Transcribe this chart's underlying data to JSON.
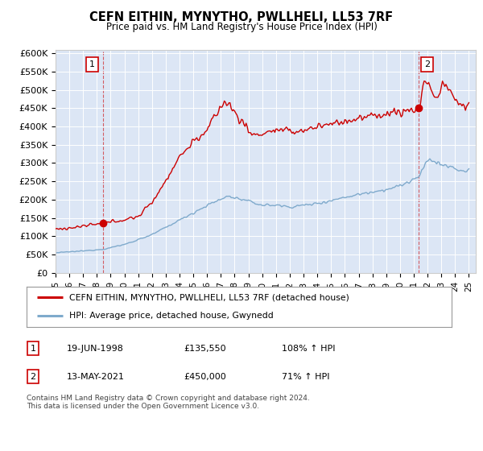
{
  "title": "CEFN EITHIN, MYNYTHO, PWLLHELI, LL53 7RF",
  "subtitle": "Price paid vs. HM Land Registry's House Price Index (HPI)",
  "ylabel_ticks": [
    "£0",
    "£50K",
    "£100K",
    "£150K",
    "£200K",
    "£250K",
    "£300K",
    "£350K",
    "£400K",
    "£450K",
    "£500K",
    "£550K",
    "£600K"
  ],
  "ytick_values": [
    0,
    50000,
    100000,
    150000,
    200000,
    250000,
    300000,
    350000,
    400000,
    450000,
    500000,
    550000,
    600000
  ],
  "ylim": [
    0,
    610000
  ],
  "xlim_start": 1995.0,
  "xlim_end": 2025.5,
  "background_color": "#dce6f5",
  "outer_bg_color": "#ffffff",
  "red_line_color": "#cc0000",
  "blue_line_color": "#7faacc",
  "marker_color": "#cc0000",
  "sale1_x": 1998.47,
  "sale1_y": 135550,
  "sale1_label": "1",
  "sale2_x": 2021.37,
  "sale2_y": 450000,
  "sale2_label": "2",
  "legend_red": "CEFN EITHIN, MYNYTHO, PWLLHELI, LL53 7RF (detached house)",
  "legend_blue": "HPI: Average price, detached house, Gwynedd",
  "table_row1": [
    "1",
    "19-JUN-1998",
    "£135,550",
    "108% ↑ HPI"
  ],
  "table_row2": [
    "2",
    "13-MAY-2021",
    "£450,000",
    "71% ↑ HPI"
  ],
  "footnote": "Contains HM Land Registry data © Crown copyright and database right 2024.\nThis data is licensed under the Open Government Licence v3.0.",
  "xtick_years": [
    "95",
    "96",
    "97",
    "98",
    "99",
    "00",
    "01",
    "02",
    "03",
    "04",
    "05",
    "06",
    "07",
    "08",
    "09",
    "10",
    "11",
    "12",
    "13",
    "14",
    "15",
    "16",
    "17",
    "18",
    "19",
    "20",
    "21",
    "22",
    "23",
    "24",
    "25"
  ],
  "xtick_positions": [
    1995,
    1996,
    1997,
    1998,
    1999,
    2000,
    2001,
    2002,
    2003,
    2004,
    2005,
    2006,
    2007,
    2008,
    2009,
    2010,
    2011,
    2012,
    2013,
    2014,
    2015,
    2016,
    2017,
    2018,
    2019,
    2020,
    2021,
    2022,
    2023,
    2024,
    2025
  ]
}
